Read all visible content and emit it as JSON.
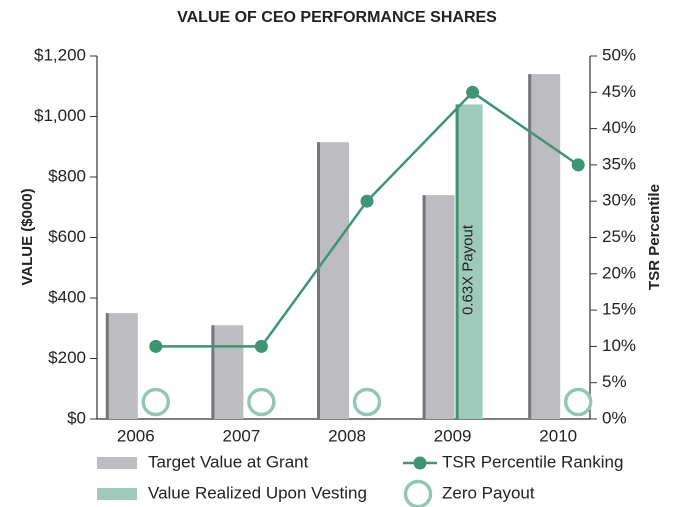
{
  "chart_data": {
    "type": "bar",
    "title": "VALUE OF CEO PERFORMANCE SHARES",
    "ylabel": "VALUE ($000)",
    "y2label": "TSR Percentile",
    "categories": [
      "2006",
      "2007",
      "2008",
      "2009",
      "2010"
    ],
    "series": [
      {
        "name": "Target Value at Grant",
        "type": "bar",
        "color": "#bdbdc1",
        "values": [
          350,
          310,
          915,
          740,
          1140
        ]
      },
      {
        "name": "Value Realized Upon Vesting",
        "type": "bar",
        "color": "#9fcabb",
        "values": [
          null,
          null,
          null,
          1040,
          null
        ]
      },
      {
        "name": "TSR Percentile Ranking",
        "type": "line",
        "axis": "y2",
        "color": "#3f9473",
        "values": [
          10,
          10,
          30,
          45,
          35
        ]
      },
      {
        "name": "Zero Payout",
        "type": "scatter",
        "color": "#93c7b4",
        "values": [
          0,
          0,
          0,
          null,
          0
        ]
      }
    ],
    "annotations": [
      "0.63X Payout"
    ],
    "ylim": [
      0,
      1200
    ],
    "yticks": [
      {
        "value": 0,
        "label": "$0"
      },
      {
        "value": 200,
        "label": "$200"
      },
      {
        "value": 400,
        "label": "$400"
      },
      {
        "value": 600,
        "label": "$600"
      },
      {
        "value": 800,
        "label": "$800"
      },
      {
        "value": 1000,
        "label": "$1,000"
      },
      {
        "value": 1200,
        "label": "$1,200"
      }
    ],
    "y2lim": [
      0,
      50
    ],
    "y2ticks": [
      {
        "value": 0,
        "label": "0%"
      },
      {
        "value": 5,
        "label": "5%"
      },
      {
        "value": 10,
        "label": "10%"
      },
      {
        "value": 15,
        "label": "15%"
      },
      {
        "value": 20,
        "label": "20%"
      },
      {
        "value": 25,
        "label": "25%"
      },
      {
        "value": 30,
        "label": "30%"
      },
      {
        "value": 35,
        "label": "35%"
      },
      {
        "value": 40,
        "label": "40%"
      },
      {
        "value": 45,
        "label": "45%"
      },
      {
        "value": 50,
        "label": "50%"
      }
    ],
    "grid": false
  }
}
